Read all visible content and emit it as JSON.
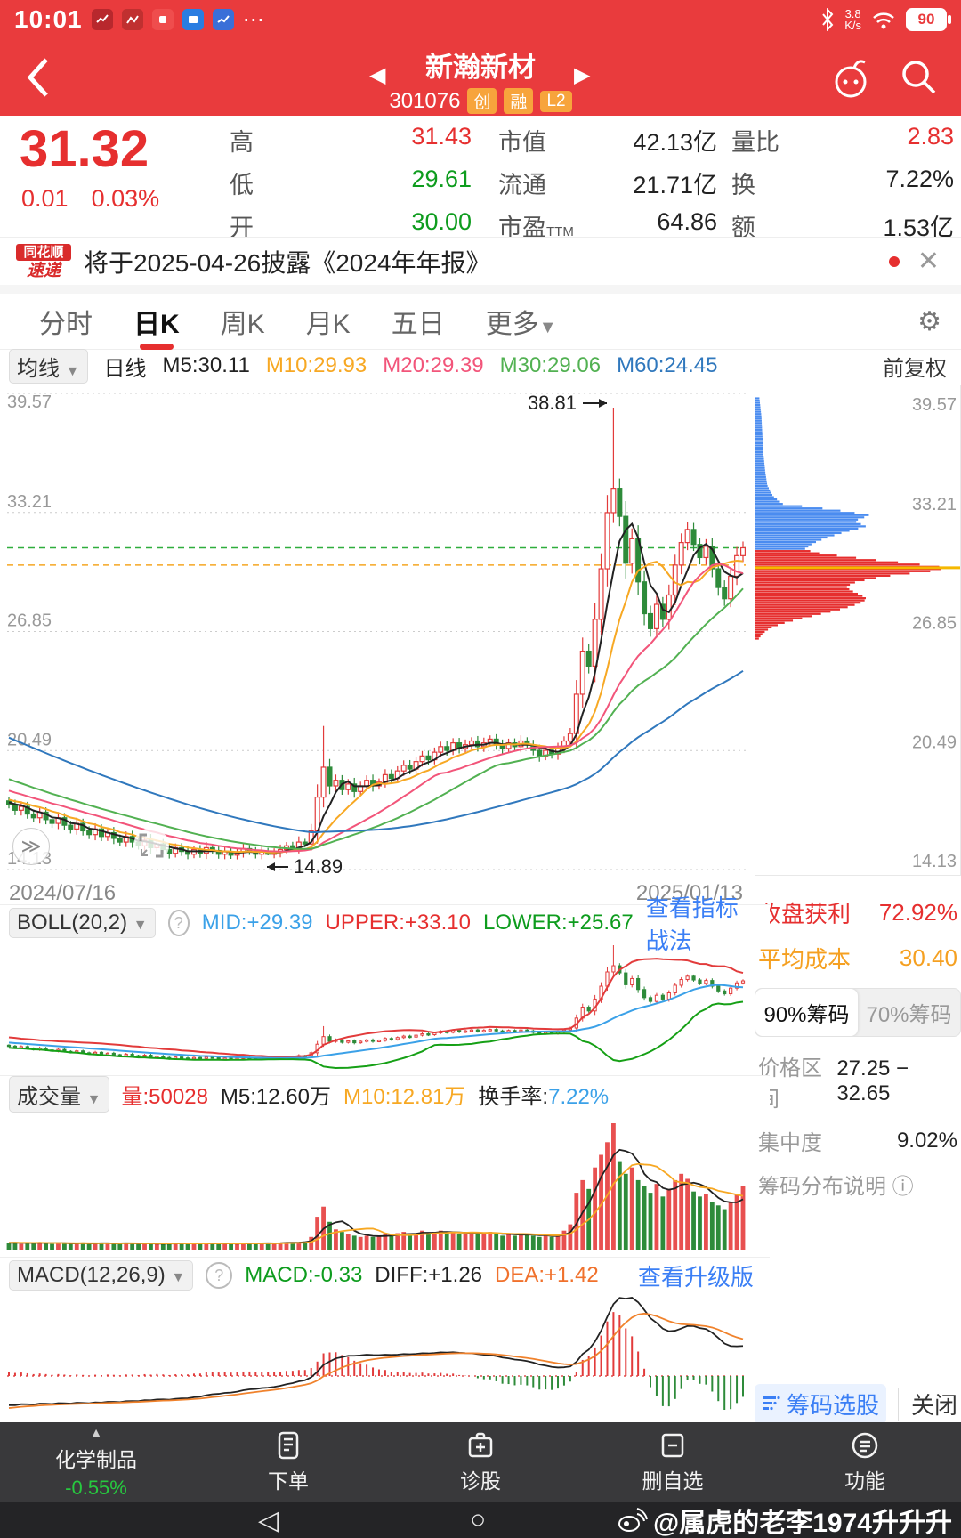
{
  "status_bar": {
    "time": "10:01",
    "net_speed": "3.8",
    "net_unit": "K/s",
    "battery": "90"
  },
  "header": {
    "title": "新瀚新材",
    "code": "301076",
    "badges": [
      "创",
      "融",
      "L2"
    ]
  },
  "quote": {
    "price": "31.32",
    "change": "0.01",
    "change_pct": "0.03%",
    "rows": [
      {
        "label": "高",
        "value": "31.43"
      },
      {
        "label": "低",
        "value": "29.61"
      },
      {
        "label": "开",
        "value": "30.00"
      },
      {
        "label": "市值",
        "value": "42.13亿"
      },
      {
        "label": "流通",
        "value": "21.71亿"
      },
      {
        "label": "市盈",
        "sup": "TTM",
        "value": "64.86"
      },
      {
        "label": "量比",
        "value": "2.83"
      },
      {
        "label": "换",
        "value": "7.22%"
      },
      {
        "label": "额",
        "value": "1.53亿"
      }
    ]
  },
  "news": {
    "logo_line1": "同花顺",
    "logo_line2": "速递",
    "text": "将于2025-04-26披露《2024年年报》"
  },
  "tabs": {
    "items": [
      {
        "label": "分时"
      },
      {
        "label": "日K"
      },
      {
        "label": "周K"
      },
      {
        "label": "月K"
      },
      {
        "label": "五日"
      },
      {
        "label": "更多"
      }
    ]
  },
  "ma_row": {
    "dropdown": "均线",
    "mode": "日线",
    "items": [
      {
        "label": "M5:30.11",
        "color": "#222222"
      },
      {
        "label": "M10:29.93",
        "color": "#f7a823"
      },
      {
        "label": "M20:29.39",
        "color": "#f2557a"
      },
      {
        "label": "M30:29.06",
        "color": "#52b152"
      },
      {
        "label": "M60:24.45",
        "color": "#3078bd"
      }
    ],
    "right": "前复权"
  },
  "main_chart": {
    "y_labels": [
      "39.57",
      "33.21",
      "26.85",
      "20.49",
      "14.13"
    ],
    "high_annotation": "38.81",
    "low_annotation": "14.89",
    "date_left": "2024/07/16",
    "date_right": "2025/01/13"
  },
  "right_summary": {
    "profit_label": "收盘获利",
    "profit_value": "72.92%",
    "cost_label": "平均成本",
    "cost_value": "30.40",
    "tab_90": "90%筹码",
    "tab_70": "70%筹码",
    "range_label": "价格区间",
    "range_value": "27.25 − 32.65",
    "conc_label": "集中度",
    "conc_value": "9.02%",
    "note_label": "筹码分布说明"
  },
  "boll": {
    "name": "BOLL(20,2)",
    "mid": "MID:+29.39",
    "upper": "UPPER:+33.10",
    "lower": "LOWER:+25.67",
    "link": "查看指标战法"
  },
  "volume_sec": {
    "name": "成交量",
    "vol": "量:50028",
    "m5": "M5:12.60万",
    "m10": "M10:12.81万",
    "turn_label": "换手率:",
    "turn_value": "7.22%"
  },
  "macd_sec": {
    "name": "MACD(12,26,9)",
    "macd": "MACD:-0.33",
    "diff": "DIFF:+1.26",
    "dea": "DEA:+1.42",
    "link": "查看升级版"
  },
  "footer_links": {
    "chip_select": "筹码选股",
    "close": "关闭"
  },
  "bottom_nav": {
    "sector_label": "化学制品",
    "sector_change": "-0.55%",
    "order": "下单",
    "diagnose": "诊股",
    "remove": "删自选",
    "func": "功能"
  },
  "watermark": "@属虎的老李1974升升升",
  "charts": {
    "levels": [
      39.57,
      33.21,
      26.85,
      20.49,
      14.13
    ],
    "price_line": 31.32,
    "cost_line": 30.4,
    "first_open": 17.8,
    "closes": [
      17.6,
      17.3,
      17.5,
      17.1,
      16.9,
      17.2,
      16.8,
      16.6,
      16.9,
      16.5,
      16.3,
      16.6,
      16.2,
      16.0,
      16.3,
      15.9,
      16.1,
      15.8,
      15.6,
      15.9,
      15.6,
      15.4,
      15.7,
      15.3,
      15.5,
      15.2,
      15.0,
      15.3,
      15.1,
      14.95,
      15.2,
      15.0,
      15.3,
      15.15,
      14.95,
      15.1,
      14.9,
      15.05,
      15.25,
      15.1,
      14.95,
      15.1,
      14.95,
      15.05,
      15.2,
      15.4,
      15.3,
      15.6,
      15.5,
      16.2,
      18.0,
      19.6,
      18.6,
      18.9,
      18.4,
      18.7,
      18.3,
      18.6,
      18.9,
      18.6,
      18.8,
      19.2,
      19.0,
      19.4,
      19.7,
      19.5,
      19.9,
      20.2,
      20.0,
      20.4,
      20.7,
      20.5,
      20.9,
      20.6,
      20.8,
      21.0,
      20.7,
      20.9,
      21.1,
      20.8,
      20.6,
      20.9,
      20.7,
      21.0,
      20.8,
      20.5,
      20.2,
      20.5,
      20.3,
      20.6,
      21.0,
      21.4,
      23.5,
      25.8,
      25.0,
      27.5,
      30.2,
      33.2,
      34.5,
      33.0,
      30.5,
      31.8,
      29.5,
      27.8,
      27.0,
      28.3,
      27.5,
      28.8,
      30.4,
      31.6,
      32.3,
      31.5,
      30.8,
      31.4,
      30.2,
      29.2,
      28.6,
      29.8,
      30.9,
      31.32
    ],
    "pre_closes": [
      26.0,
      25.8,
      25.7,
      25.5,
      25.3,
      25.2,
      25.0,
      24.8,
      24.7,
      24.5,
      24.3,
      24.1,
      24.0,
      23.8,
      23.6,
      23.5,
      23.3,
      23.1,
      23.0,
      22.8,
      22.6,
      22.5,
      22.3,
      22.1,
      22.0,
      21.8,
      21.7,
      21.5,
      21.3,
      21.2,
      21.0,
      20.9,
      20.7,
      20.6,
      20.4,
      20.3,
      20.1,
      20.0,
      19.8,
      19.7,
      19.5,
      19.4,
      19.3,
      19.1,
      19.0,
      18.9,
      18.7,
      18.6,
      18.5,
      18.4,
      18.3,
      18.2,
      18.1,
      18.0,
      17.9,
      17.9,
      17.8,
      17.8,
      17.7,
      17.7
    ],
    "overrides": {
      "42": {
        "l": 14.89
      },
      "51": {
        "h": 21.8
      },
      "98": {
        "h": 38.81
      }
    },
    "volumes": [
      0.5,
      0.6,
      0.45,
      0.55,
      0.5,
      0.6,
      0.5,
      0.45,
      0.55,
      0.5,
      0.45,
      0.5,
      0.55,
      0.45,
      0.5,
      0.55,
      0.5,
      0.45,
      0.5,
      0.55,
      0.5,
      0.45,
      0.5,
      0.45,
      0.5,
      0.45,
      0.5,
      0.55,
      0.5,
      0.45,
      0.5,
      0.45,
      0.55,
      0.5,
      0.45,
      0.5,
      0.45,
      0.5,
      0.55,
      0.5,
      0.45,
      0.5,
      0.55,
      0.5,
      0.55,
      0.6,
      0.55,
      0.6,
      0.65,
      1.0,
      2.6,
      3.4,
      2.2,
      1.6,
      1.4,
      1.2,
      1.1,
      1.0,
      1.1,
      1.0,
      1.1,
      1.2,
      1.1,
      1.3,
      1.4,
      1.2,
      1.3,
      1.5,
      1.3,
      1.4,
      1.5,
      1.3,
      1.4,
      1.2,
      1.3,
      1.4,
      1.2,
      1.3,
      1.4,
      1.2,
      1.1,
      1.2,
      1.1,
      1.3,
      1.2,
      1.1,
      1.0,
      1.1,
      1.0,
      1.2,
      1.5,
      2.0,
      4.5,
      5.5,
      4.8,
      6.5,
      7.5,
      8.5,
      10.0,
      7.0,
      6.0,
      6.5,
      5.5,
      5.0,
      4.5,
      5.2,
      4.2,
      4.8,
      5.5,
      6.0,
      5.6,
      4.6,
      4.2,
      4.4,
      3.8,
      3.5,
      3.2,
      3.8,
      4.4,
      5.0
    ],
    "chip_profile": [
      [
        39.45,
        0.02
      ],
      [
        38.5,
        0.03
      ],
      [
        37.5,
        0.035
      ],
      [
        36.5,
        0.04
      ],
      [
        35.5,
        0.05
      ],
      [
        34.8,
        0.06
      ],
      [
        34.2,
        0.09
      ],
      [
        33.8,
        0.14
      ],
      [
        33.5,
        0.4
      ],
      [
        33.2,
        0.58
      ],
      [
        32.9,
        0.5
      ],
      [
        32.6,
        0.56
      ],
      [
        32.3,
        0.45
      ],
      [
        32.0,
        0.36
      ],
      [
        31.7,
        0.29
      ],
      [
        31.4,
        0.25
      ],
      [
        31.2,
        0.3
      ],
      [
        31.0,
        0.45
      ],
      [
        30.8,
        0.62
      ],
      [
        30.55,
        0.85
      ],
      [
        30.4,
        0.97
      ],
      [
        30.2,
        0.88
      ],
      [
        30.0,
        0.7
      ],
      [
        29.8,
        0.58
      ],
      [
        29.6,
        0.5
      ],
      [
        29.4,
        0.46
      ],
      [
        29.2,
        0.48
      ],
      [
        29.0,
        0.52
      ],
      [
        28.8,
        0.56
      ],
      [
        28.6,
        0.55
      ],
      [
        28.4,
        0.5
      ],
      [
        28.2,
        0.44
      ],
      [
        28.0,
        0.36
      ],
      [
        27.8,
        0.28
      ],
      [
        27.6,
        0.2
      ],
      [
        27.4,
        0.13
      ],
      [
        27.2,
        0.08
      ],
      [
        27.0,
        0.05
      ],
      [
        26.8,
        0.03
      ],
      [
        26.5,
        0.01
      ]
    ],
    "colors": {
      "up": "#e23b3b",
      "down": "#2e8b3a",
      "ma5": "#222222",
      "ma10": "#f7a823",
      "ma20": "#f2557a",
      "ma30": "#52b152",
      "ma60": "#3078bd",
      "chip_blue": "#4a8cf0",
      "chip_red": "#e62e2e",
      "cost_yellow": "#f5b800"
    }
  }
}
